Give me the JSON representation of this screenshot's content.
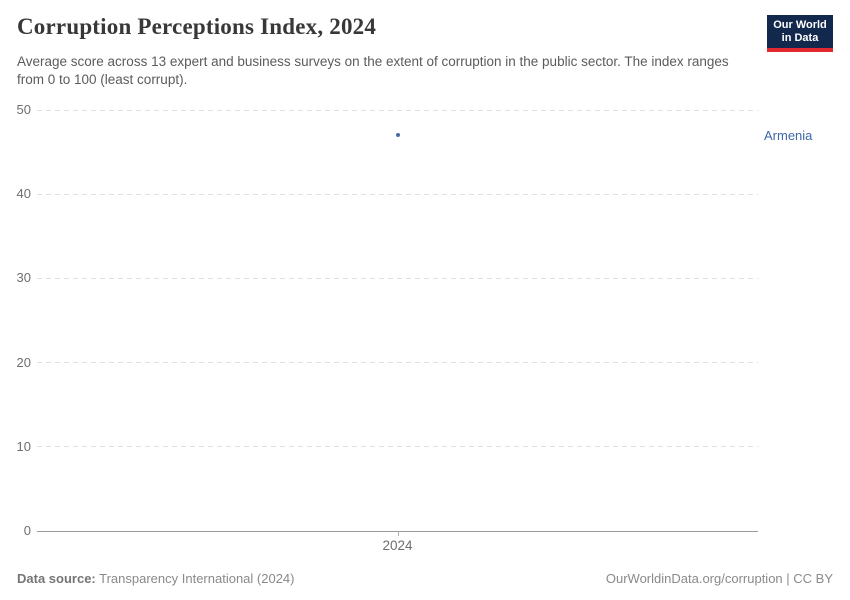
{
  "header": {
    "title": "Corruption Perceptions Index, 2024",
    "subtitle": "Average score across 13 expert and business surveys on the extent of corruption in the public sector. The index ranges from 0 to 100 (least corrupt)."
  },
  "logo": {
    "line1": "Our World",
    "line2": "in Data",
    "background": "#12294d",
    "bar_color": "#e0282f"
  },
  "chart_data": {
    "type": "scatter",
    "title": "Corruption Perceptions Index, 2024",
    "x": [
      2024
    ],
    "xticks": [
      "2024"
    ],
    "series": [
      {
        "name": "Armenia",
        "values": [
          47
        ],
        "color": "#4a6ba3",
        "label_color": "#3e66aa"
      }
    ],
    "xlabel": "",
    "ylabel": "",
    "ylim": [
      0,
      50
    ],
    "yticks": [
      0,
      10,
      20,
      30,
      40,
      50
    ],
    "grid": "horizontal dashed, solid zero baseline",
    "legend": "entity label at right of point",
    "gridline_color": "#e0e0e0",
    "zero_line_color": "#9a9a9a",
    "tick_label_color": "#6e6e6e"
  },
  "footer": {
    "datasource_label": "Data source:",
    "datasource_value": "Transparency International (2024)",
    "right_text": "OurWorldinData.org/corruption | CC BY"
  }
}
